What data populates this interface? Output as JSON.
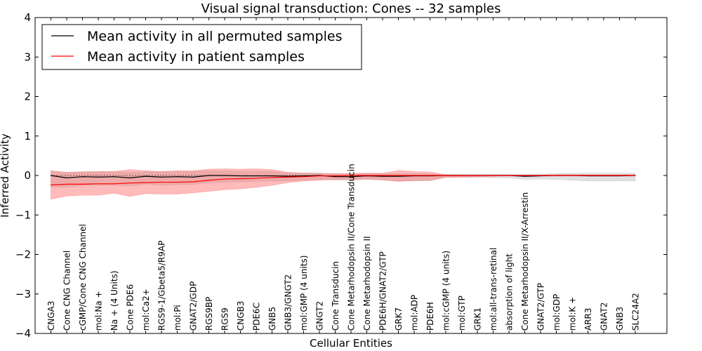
{
  "chart_data": {
    "type": "line",
    "title": "Visual signal transduction: Cones -- 32 samples",
    "xlabel": "Cellular Entities",
    "ylabel": "Inferred Activity",
    "ylim": [
      -4,
      4
    ],
    "yticks": [
      -4,
      -3,
      -2,
      -1,
      0,
      1,
      2,
      3,
      4
    ],
    "ytick_labels": [
      "−4",
      "−3",
      "−2",
      "−1",
      "0",
      "1",
      "2",
      "3",
      "4"
    ],
    "legend_position": "upper-left",
    "categories": [
      "CNGA3",
      "Cone CNG Channel",
      "cGMP/Cone CNG Channel",
      "mol:Na +",
      "Na + (4 Units)",
      "Cone PDE6",
      "mol:Ca2+",
      "RGS9-1/Gbeta5/R9AP",
      "mol:Pi",
      "GNAT2/GDP",
      "RGS9BP",
      "RGS9",
      "CNGB3",
      "PDE6C",
      "GNB5",
      "GNB3/GNGT2",
      "mol:GMP (4 units)",
      "GNGT2",
      "Cone Transducin",
      "Cone Metarhodopsin II/Cone Transducin",
      "Cone Metarhodopsin II",
      "PDE6H/GNAT2/GTP",
      "GRK7",
      "mol:ADP",
      "PDE6H",
      "mol:cGMP (4 units)",
      "mol:GTP",
      "GRK1",
      "mol:all-trans-retinal",
      "absorption of light",
      "Cone Metarhodopsin II/X-Arrestin",
      "GNAT2/GTP",
      "mol:GDP",
      "mol:K +",
      "ARR3",
      "GNAT2",
      "GNB3",
      "SLC24A2"
    ],
    "series": [
      {
        "name": "Mean activity in all permuted samples",
        "color": "#000000",
        "band_color": "#bbbbbb",
        "values": [
          0.0,
          -0.06,
          -0.03,
          -0.04,
          -0.03,
          -0.06,
          -0.02,
          -0.04,
          -0.03,
          -0.04,
          0.0,
          0.0,
          -0.01,
          -0.01,
          -0.01,
          -0.02,
          -0.01,
          0.0,
          -0.03,
          -0.03,
          -0.01,
          -0.02,
          -0.02,
          -0.01,
          -0.01,
          0.0,
          0.0,
          0.0,
          0.0,
          0.0,
          -0.02,
          -0.01,
          0.0,
          0.0,
          -0.01,
          -0.01,
          -0.01,
          0.0
        ],
        "lower": [
          -0.3,
          -0.3,
          -0.25,
          -0.25,
          -0.24,
          -0.27,
          -0.22,
          -0.25,
          -0.23,
          -0.23,
          -0.18,
          -0.17,
          -0.16,
          -0.15,
          -0.14,
          -0.14,
          -0.12,
          -0.1,
          -0.12,
          -0.12,
          -0.1,
          -0.12,
          -0.14,
          -0.14,
          -0.14,
          -0.05,
          -0.05,
          -0.05,
          -0.06,
          -0.06,
          -0.1,
          -0.09,
          -0.1,
          -0.12,
          -0.14,
          -0.14,
          -0.14,
          -0.14
        ],
        "upper": [
          0.12,
          0.08,
          0.1,
          0.1,
          0.1,
          0.08,
          0.1,
          0.1,
          0.1,
          0.1,
          0.12,
          0.12,
          0.1,
          0.1,
          0.1,
          0.07,
          0.07,
          0.07,
          0.04,
          0.04,
          0.06,
          0.05,
          0.05,
          0.05,
          0.05,
          0.03,
          0.03,
          0.03,
          0.03,
          0.03,
          0.03,
          0.04,
          0.05,
          0.06,
          0.06,
          0.06,
          0.06,
          0.06
        ]
      },
      {
        "name": "Mean activity in patient samples",
        "color": "#ff0000",
        "band_color": "#ff6666",
        "values": [
          -0.24,
          -0.22,
          -0.22,
          -0.21,
          -0.21,
          -0.19,
          -0.18,
          -0.17,
          -0.17,
          -0.16,
          -0.12,
          -0.09,
          -0.08,
          -0.07,
          -0.05,
          -0.04,
          -0.03,
          -0.01,
          -0.01,
          0.0,
          0.0,
          0.0,
          0.0,
          0.0,
          0.0,
          0.0,
          0.0,
          0.0,
          0.0,
          0.0,
          0.0,
          0.0,
          0.0,
          0.0,
          0.0,
          0.0,
          0.0,
          0.0
        ],
        "lower": [
          -0.6,
          -0.52,
          -0.5,
          -0.5,
          -0.45,
          -0.53,
          -0.46,
          -0.47,
          -0.47,
          -0.44,
          -0.4,
          -0.36,
          -0.34,
          -0.3,
          -0.25,
          -0.18,
          -0.14,
          -0.12,
          -0.1,
          -0.1,
          -0.09,
          -0.11,
          -0.15,
          -0.13,
          -0.12,
          -0.05,
          -0.04,
          -0.03,
          -0.02,
          -0.01,
          -0.01,
          -0.01,
          -0.01,
          -0.01,
          -0.01,
          -0.01,
          -0.01,
          -0.01
        ],
        "upper": [
          0.12,
          0.08,
          0.09,
          0.1,
          0.1,
          0.15,
          0.12,
          0.1,
          0.12,
          0.12,
          0.16,
          0.17,
          0.16,
          0.17,
          0.15,
          0.08,
          0.06,
          0.05,
          0.05,
          0.05,
          0.06,
          0.06,
          0.13,
          0.1,
          0.09,
          0.02,
          0.01,
          0.01,
          0.01,
          0.01,
          0.01,
          0.01,
          0.02,
          0.02,
          0.02,
          0.02,
          0.02,
          0.02
        ]
      }
    ],
    "reference_line": {
      "value": 0,
      "style": "dotted"
    }
  }
}
